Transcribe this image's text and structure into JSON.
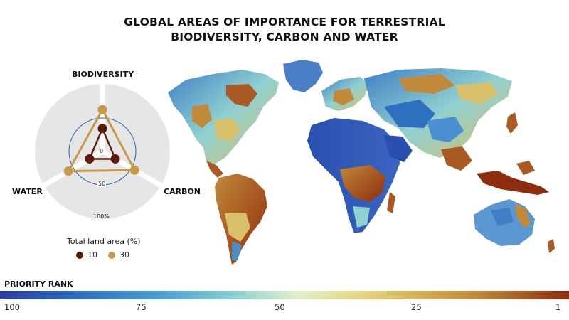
{
  "title": {
    "line1": "GLOBAL AREAS OF IMPORTANCE FOR TERRESTRIAL",
    "line2": "BIODIVERSITY, CARBON AND WATER"
  },
  "radar": {
    "axes": [
      "BIODIVERSITY",
      "WATER",
      "CARBON"
    ],
    "ticks": [
      "0",
      "50",
      "100%"
    ],
    "colors": {
      "ten": "#5b1a0c",
      "thirty": "#c79a4a",
      "ring": "#2f5fb0",
      "background": "#e6e6e6"
    },
    "series": [
      {
        "name": "10",
        "values": {
          "biodiversity": 0.34,
          "water": 0.22,
          "carbon": 0.22
        }
      },
      {
        "name": "30",
        "values": {
          "biodiversity": 0.62,
          "water": 0.58,
          "carbon": 0.55
        }
      }
    ]
  },
  "legend": {
    "title": "Total land area (%)",
    "items": [
      {
        "label": "10",
        "color": "#5b1a0c"
      },
      {
        "label": "30",
        "color": "#c79a4a"
      }
    ]
  },
  "priority": {
    "title": "PRIORITY RANK",
    "ticks": [
      "100",
      "75",
      "50",
      "25",
      "1"
    ]
  },
  "map": {
    "colors": {
      "low": "#2a3da0",
      "mid": "#8fd3cf",
      "high": "#8e2c10"
    }
  }
}
